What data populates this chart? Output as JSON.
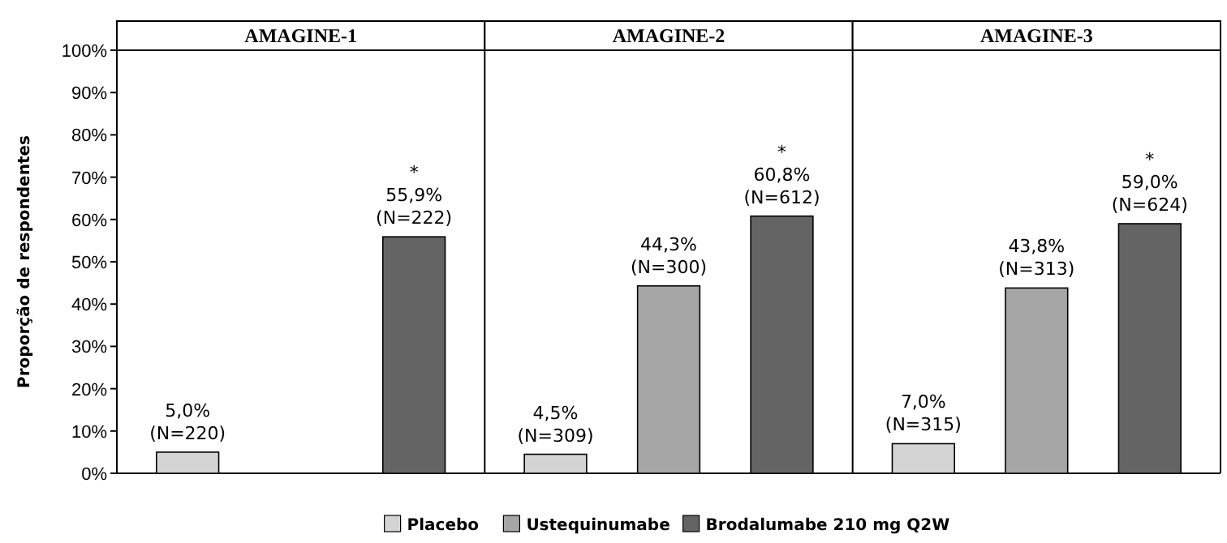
{
  "chart_data": {
    "type": "bar",
    "ylabel": "Proporção de respondentes",
    "categories": [
      "AMAGINE-1",
      "AMAGINE-2",
      "AMAGINE-3"
    ],
    "legend": "bottom",
    "grid": true,
    "ylim": [
      0,
      100
    ],
    "yticks": [
      {
        "value": 0,
        "label": "0%"
      },
      {
        "value": 10,
        "label": "10%"
      },
      {
        "value": 20,
        "label": "20%"
      },
      {
        "value": 30,
        "label": "30%"
      },
      {
        "value": 40,
        "label": "40%"
      },
      {
        "value": 50,
        "label": "50%"
      },
      {
        "value": 60,
        "label": "60%"
      },
      {
        "value": 70,
        "label": "70%"
      },
      {
        "value": 80,
        "label": "80%"
      },
      {
        "value": 90,
        "label": "90%"
      },
      {
        "value": 100,
        "label": "100%"
      }
    ],
    "series": [
      {
        "name": "Placebo",
        "color": "#d4d4d4",
        "values": [
          5.0,
          4.5,
          7.0
        ],
        "value_labels": [
          "5,0%\n(N=220)",
          "4,5%\n(N=309)",
          "7,0%\n(N=315)"
        ]
      },
      {
        "name": "Ustequinumabe",
        "color": "#a6a6a6",
        "values": [
          null,
          44.3,
          43.8
        ],
        "value_labels": [
          null,
          "44,3%\n(N=300)",
          "43,8%\n(N=313)"
        ]
      },
      {
        "name": "Brodalumabe 210 mg Q2W",
        "color": "#646464",
        "values": [
          55.9,
          60.8,
          59.0
        ],
        "value_labels": [
          "*\n55,9%\n(N=222)",
          "*\n60,8%\n(N=612)",
          "*\n59,0%\n(N=624)"
        ]
      }
    ]
  }
}
